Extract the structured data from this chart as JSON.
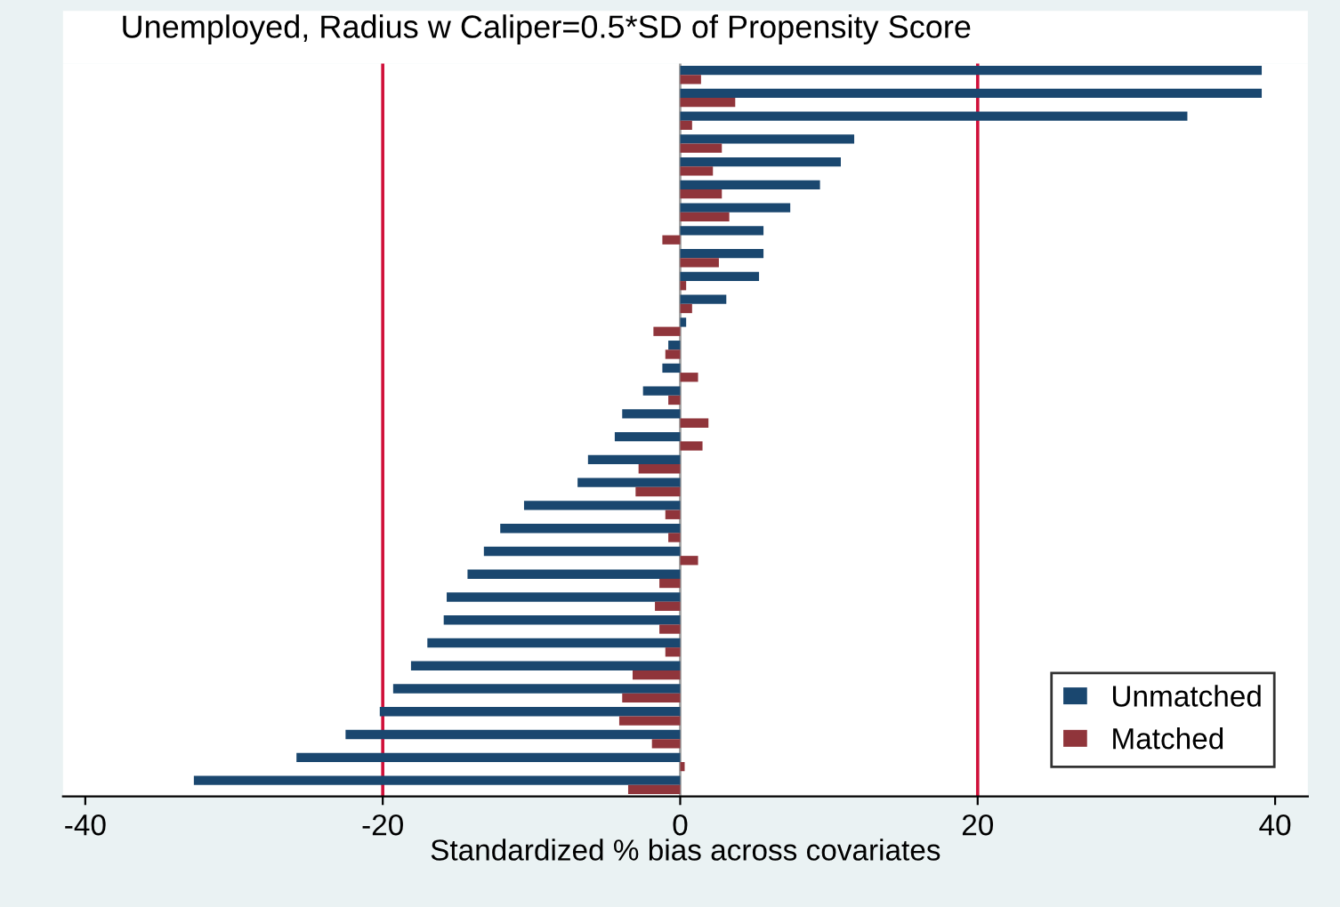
{
  "chart_data": {
    "type": "bar",
    "orientation": "horizontal",
    "title": "Unemployed, Radius w Caliper=0.5*SD of Propensity Score",
    "xlabel": "Standardized % bias across covariates",
    "categories": [
      null,
      null,
      null,
      null,
      null,
      null,
      null,
      null,
      null,
      null,
      null,
      null,
      null,
      null,
      null,
      null,
      null,
      null,
      null,
      null,
      null,
      null,
      null,
      null,
      null,
      null,
      null,
      null,
      null,
      null,
      null,
      null
    ],
    "series": [
      {
        "name": "Unmatched",
        "color": "#1a476f",
        "values": [
          39.1,
          39.1,
          34.1,
          11.7,
          10.8,
          9.4,
          7.4,
          5.6,
          5.6,
          5.3,
          3.1,
          0.4,
          -0.8,
          -1.2,
          -2.5,
          -3.9,
          -4.4,
          -6.2,
          -6.9,
          -10.5,
          -12.1,
          -13.2,
          -14.3,
          -15.7,
          -15.9,
          -17.0,
          -18.1,
          -19.3,
          -20.2,
          -22.5,
          -25.8,
          -32.7
        ]
      },
      {
        "name": "Matched",
        "color": "#90353b",
        "values": [
          1.4,
          3.7,
          0.8,
          2.8,
          2.2,
          2.8,
          3.3,
          -1.2,
          2.6,
          0.4,
          0.8,
          -1.8,
          -1.0,
          1.2,
          -0.8,
          1.9,
          1.5,
          -2.8,
          -3.0,
          -1.0,
          -0.8,
          1.2,
          -1.4,
          -1.7,
          -1.4,
          -1.0,
          -3.2,
          -3.9,
          -4.1,
          -1.9,
          0.3,
          -3.5
        ]
      }
    ],
    "xlim": [
      -41.5,
      42.2
    ],
    "xticks": [
      -40,
      -20,
      0,
      20,
      40
    ],
    "tick_labels": "x",
    "grid": false,
    "legend": "bottom right",
    "ref_lines": [
      {
        "axis": "x",
        "value": -20,
        "color": "#d0103a"
      },
      {
        "axis": "x",
        "value": 20,
        "color": "#d0103a"
      },
      {
        "axis": "x",
        "value": 0,
        "color": "#a0a0a0"
      }
    ]
  }
}
